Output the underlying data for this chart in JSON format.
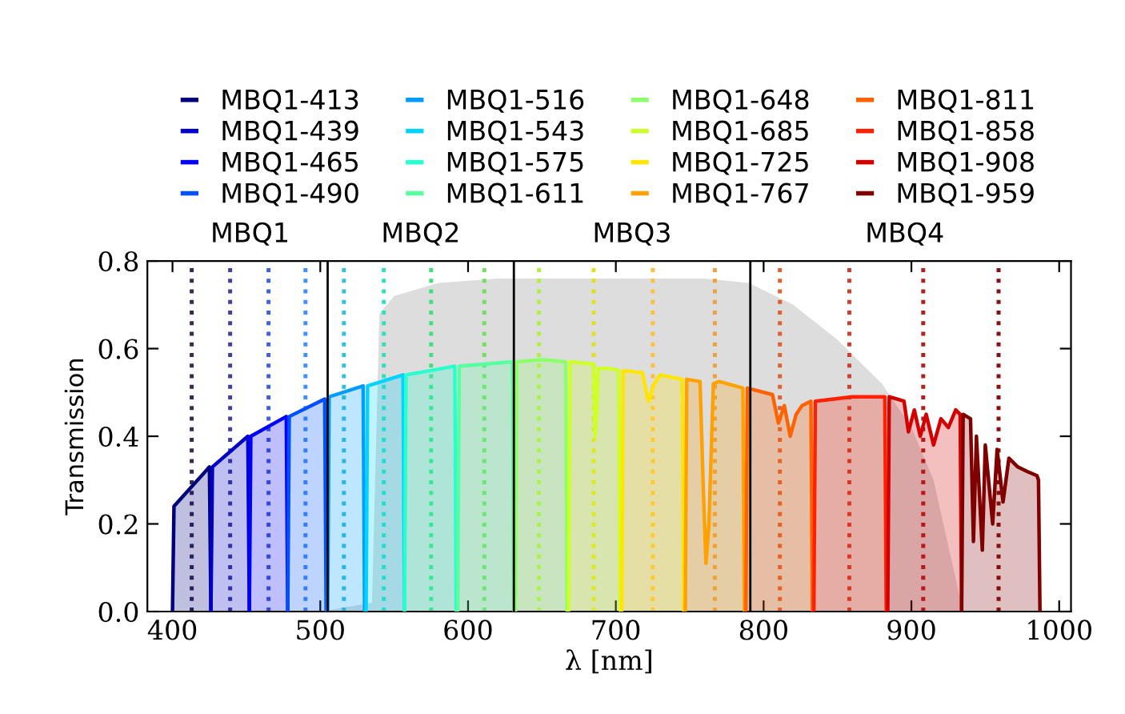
{
  "chart_data": {
    "type": "area",
    "xlabel": "λ [nm]",
    "ylabel": "Transmission",
    "xlim": [
      383,
      1008
    ],
    "ylim": [
      0,
      0.8
    ],
    "xticks": [
      400,
      500,
      600,
      700,
      800,
      900,
      1000
    ],
    "yticks": [
      {
        "value": 0,
        "label": "0.0"
      },
      {
        "value": 0.2,
        "label": "0.2"
      },
      {
        "value": 0.4,
        "label": "0.4"
      },
      {
        "value": 0.6,
        "label": "0.6"
      },
      {
        "value": 0.8,
        "label": "0.8"
      }
    ],
    "grid": false,
    "legend": "top",
    "marker": "none",
    "series": [
      {
        "color": "#dddddd",
        "x": [
          500,
          535,
          540,
          550,
          580,
          620,
          760,
          790,
          820,
          850,
          880,
          900,
          915,
          925,
          935
        ],
        "values": [
          0,
          0.02,
          0.68,
          0.72,
          0.75,
          0.76,
          0.76,
          0.75,
          0.7,
          0.62,
          0.52,
          0.42,
          0.3,
          0.15,
          0
        ]
      },
      {
        "name": "MBQ1-413",
        "color": "#00007f",
        "x": [
          400,
          401,
          425,
          426
        ],
        "values": [
          0,
          0.24,
          0.33,
          0
        ]
      },
      {
        "name": "MBQ1-439",
        "color": "#0000c8",
        "x": [
          426,
          427,
          451,
          452
        ],
        "values": [
          0,
          0.33,
          0.4,
          0
        ]
      },
      {
        "name": "MBQ1-465",
        "color": "#0000ff",
        "x": [
          452,
          453,
          477,
          478
        ],
        "values": [
          0,
          0.4,
          0.445,
          0
        ]
      },
      {
        "name": "MBQ1-490",
        "color": "#0050ff",
        "x": [
          478,
          479,
          503,
          504
        ],
        "values": [
          0,
          0.445,
          0.485,
          0
        ]
      },
      {
        "name": "MBQ1-516",
        "color": "#009cff",
        "x": [
          505,
          506,
          529,
          530
        ],
        "values": [
          0,
          0.49,
          0.515,
          0
        ]
      },
      {
        "name": "MBQ1-543",
        "color": "#00d4ff",
        "x": [
          531,
          532,
          556,
          557
        ],
        "values": [
          0,
          0.515,
          0.54,
          0
        ]
      },
      {
        "name": "MBQ1-575",
        "color": "#29ffce",
        "x": [
          557,
          558,
          575,
          591,
          592
        ],
        "values": [
          0,
          0.54,
          0.55,
          0.56,
          0
        ]
      },
      {
        "name": "MBQ1-611",
        "color": "#56ffa0",
        "x": [
          593,
          594,
          630,
          631
        ],
        "values": [
          0,
          0.56,
          0.57,
          0
        ]
      },
      {
        "name": "MBQ1-648",
        "color": "#8cff6a",
        "x": [
          632,
          633,
          650,
          666,
          667
        ],
        "values": [
          0,
          0.57,
          0.575,
          0.57,
          0
        ]
      },
      {
        "name": "MBQ1-685",
        "color": "#ceff29",
        "x": [
          668,
          669,
          685,
          686,
          687,
          688,
          695,
          702,
          703
        ],
        "values": [
          0,
          0.57,
          0.565,
          0.4,
          0.45,
          0.555,
          0.555,
          0.55,
          0
        ]
      },
      {
        "name": "MBQ1-725",
        "color": "#ffe500",
        "x": [
          704,
          705,
          718,
          722,
          726,
          730,
          745,
          746
        ],
        "values": [
          0,
          0.55,
          0.545,
          0.48,
          0.52,
          0.54,
          0.53,
          0
        ]
      },
      {
        "name": "MBQ1-767",
        "color": "#ffa100",
        "x": [
          747,
          748,
          757,
          759,
          761,
          763,
          766,
          770,
          786,
          787
        ],
        "values": [
          0,
          0.53,
          0.525,
          0.3,
          0.11,
          0.2,
          0.52,
          0.525,
          0.51,
          0
        ]
      },
      {
        "name": "MBQ1-811",
        "color": "#ff6200",
        "x": [
          788,
          789,
          806,
          810,
          814,
          818,
          822,
          826,
          832,
          833
        ],
        "values": [
          0,
          0.51,
          0.495,
          0.43,
          0.47,
          0.4,
          0.45,
          0.47,
          0.48,
          0
        ]
      },
      {
        "name": "MBQ1-858",
        "color": "#ff2000",
        "x": [
          834,
          835,
          860,
          882,
          883
        ],
        "values": [
          0,
          0.48,
          0.49,
          0.49,
          0
        ]
      },
      {
        "name": "MBQ1-908",
        "color": "#d40000",
        "x": [
          884,
          885,
          895,
          898,
          902,
          906,
          910,
          915,
          920,
          925,
          930,
          933,
          934
        ],
        "values": [
          0,
          0.49,
          0.48,
          0.41,
          0.46,
          0.4,
          0.45,
          0.38,
          0.44,
          0.42,
          0.46,
          0.45,
          0
        ]
      },
      {
        "name": "MBQ1-959",
        "color": "#800000",
        "x": [
          934,
          935,
          940,
          942,
          944,
          948,
          950,
          955,
          958,
          962,
          966,
          972,
          978,
          985,
          986,
          987
        ],
        "values": [
          0,
          0.45,
          0.44,
          0.16,
          0.4,
          0.14,
          0.38,
          0.2,
          0.37,
          0.25,
          0.35,
          0.33,
          0.32,
          0.31,
          0.3,
          0
        ]
      }
    ],
    "ref_lines": [
      {
        "axis": "x",
        "value": 413,
        "color": "#3a2a50",
        "line_style": "dotted"
      },
      {
        "axis": "x",
        "value": 439,
        "color": "#4040a0",
        "line_style": "dotted"
      },
      {
        "axis": "x",
        "value": 465,
        "color": "#4060e0",
        "line_style": "dotted"
      },
      {
        "axis": "x",
        "value": 490,
        "color": "#4090ff",
        "line_style": "dotted"
      },
      {
        "axis": "x",
        "value": 516,
        "color": "#30c0e0",
        "line_style": "dotted"
      },
      {
        "axis": "x",
        "value": 543,
        "color": "#30e0c0",
        "line_style": "dotted"
      },
      {
        "axis": "x",
        "value": 575,
        "color": "#40e080",
        "line_style": "dotted"
      },
      {
        "axis": "x",
        "value": 611,
        "color": "#70e060",
        "line_style": "dotted"
      },
      {
        "axis": "x",
        "value": 648,
        "color": "#b0f040",
        "line_style": "dotted"
      },
      {
        "axis": "x",
        "value": 685,
        "color": "#e0e020",
        "line_style": "dotted"
      },
      {
        "axis": "x",
        "value": 725,
        "color": "#ffc040",
        "line_style": "dotted"
      },
      {
        "axis": "x",
        "value": 767,
        "color": "#f0a040",
        "line_style": "dotted"
      },
      {
        "axis": "x",
        "value": 811,
        "color": "#e06030",
        "line_style": "dotted"
      },
      {
        "axis": "x",
        "value": 858,
        "color": "#d04030",
        "line_style": "dotted"
      },
      {
        "axis": "x",
        "value": 908,
        "color": "#b02020",
        "line_style": "dotted"
      },
      {
        "axis": "x",
        "value": 959,
        "color": "#8a1010",
        "line_style": "dotted"
      },
      {
        "axis": "x",
        "value": 505,
        "color": "#000000",
        "line_style": "solid"
      },
      {
        "axis": "x",
        "value": 631,
        "color": "#000000",
        "line_style": "solid"
      },
      {
        "axis": "x",
        "value": 791,
        "color": "#000000",
        "line_style": "solid"
      }
    ],
    "annotations": [
      "MBQ1",
      "MBQ2",
      "MBQ3",
      "MBQ4"
    ]
  }
}
